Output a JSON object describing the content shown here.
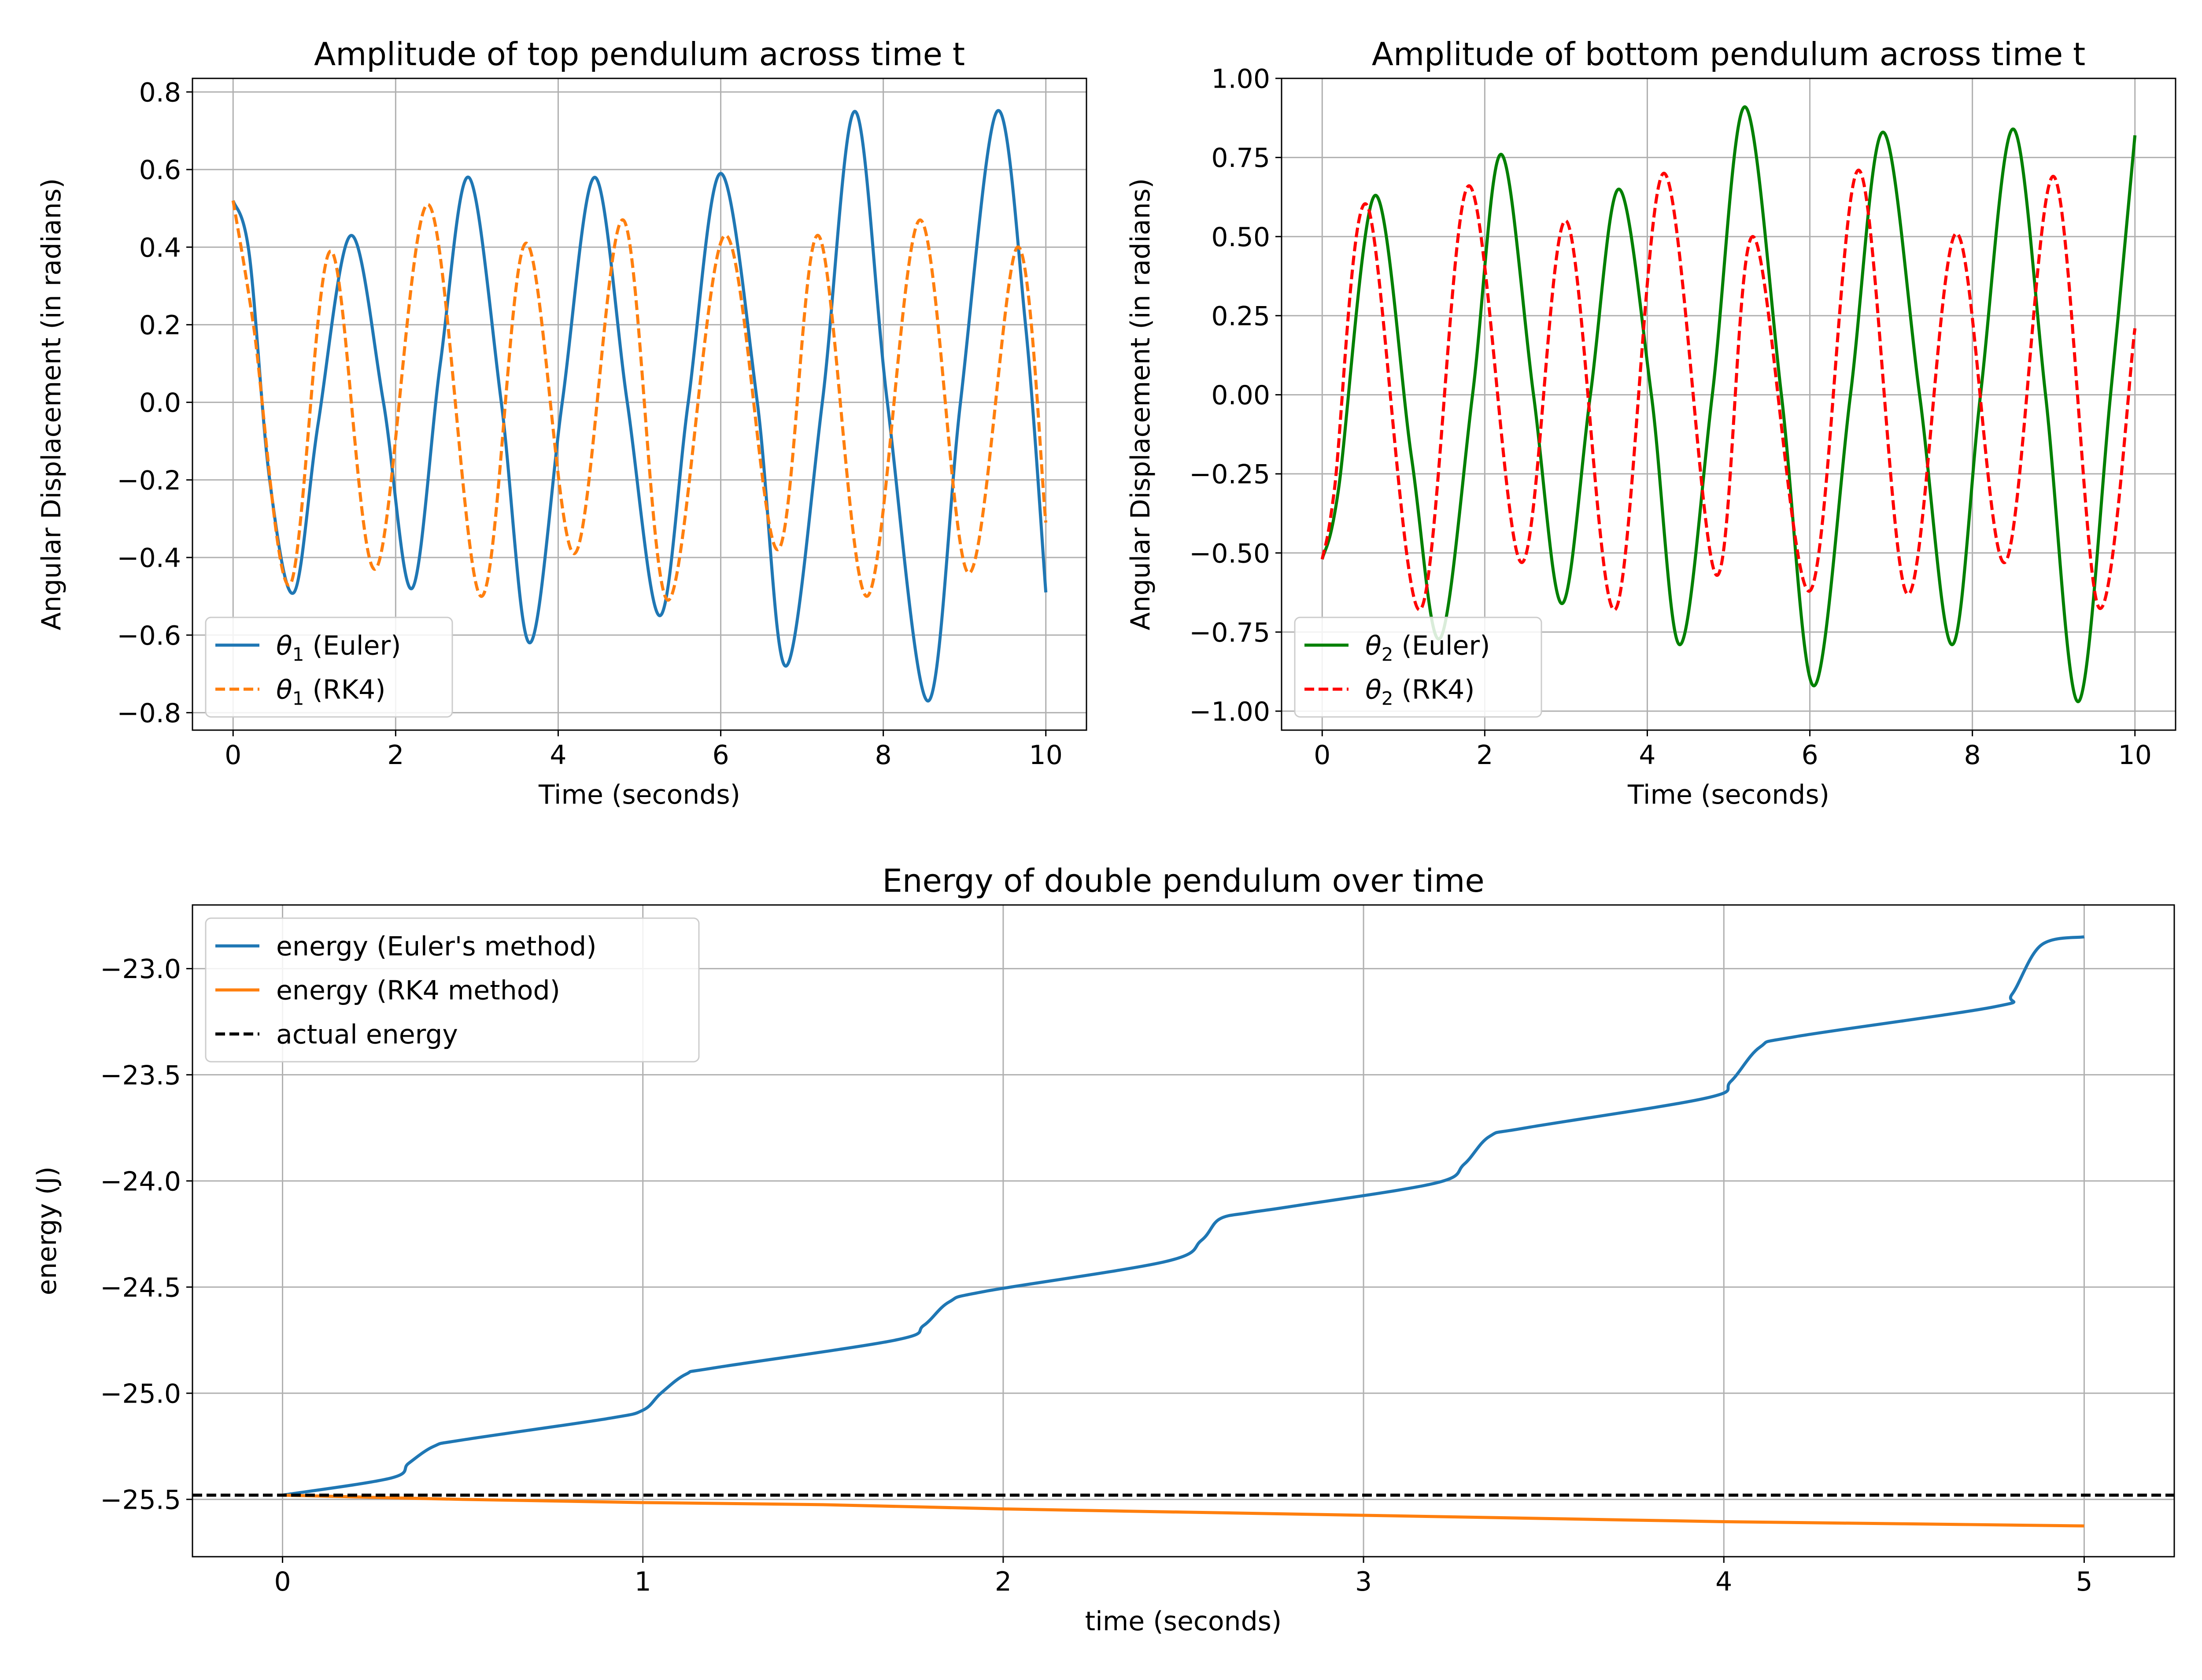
{
  "chart_data": [
    {
      "id": "top",
      "type": "line",
      "title": "Amplitude of top pendulum across time t",
      "xlabel": "Time (seconds)",
      "ylabel": "Angular Displacement (in radians)",
      "xlim": [
        -0.5,
        10.5
      ],
      "ylim": [
        -0.845,
        0.835
      ],
      "xticks": [
        0,
        2,
        4,
        6,
        8,
        10
      ],
      "xtick_labels": [
        "0",
        "2",
        "4",
        "6",
        "8",
        "10"
      ],
      "yticks": [
        -0.8,
        -0.6,
        -0.4,
        -0.2,
        0.0,
        0.2,
        0.4,
        0.6,
        0.8
      ],
      "ytick_labels": [
        "−0.8",
        "−0.6",
        "−0.4",
        "−0.2",
        "0.0",
        "0.2",
        "0.4",
        "0.6",
        "0.8"
      ],
      "grid": true,
      "legend_position": "lower-left",
      "series": [
        {
          "name_base": "θ",
          "name_sub": "1",
          "name_suffix": " (Euler)",
          "color": "#1f77b4",
          "dash": "solid",
          "x": [
            0,
            0.2,
            0.45,
            0.75,
            1.05,
            1.45,
            1.85,
            2.2,
            2.55,
            2.9,
            3.3,
            3.65,
            4.05,
            4.45,
            4.85,
            5.25,
            5.6,
            6.0,
            6.45,
            6.8,
            7.25,
            7.65,
            8.05,
            8.55,
            8.95,
            9.4,
            9.75,
            10.0
          ],
          "y": [
            0.52,
            0.38,
            -0.2,
            -0.49,
            -0.05,
            0.43,
            0.0,
            -0.48,
            0.1,
            0.58,
            0.0,
            -0.62,
            0.0,
            0.58,
            0.0,
            -0.55,
            0.0,
            0.59,
            0.0,
            -0.68,
            0.0,
            0.75,
            0.0,
            -0.77,
            0.0,
            0.75,
            0.2,
            -0.49
          ]
        },
        {
          "name_base": "θ",
          "name_sub": "1",
          "name_suffix": " (RK4)",
          "color": "#ff7f0e",
          "dash": "dashed",
          "x": [
            0,
            0.25,
            0.7,
            1.2,
            1.75,
            2.4,
            3.05,
            3.6,
            4.2,
            4.8,
            5.35,
            6.05,
            6.7,
            7.2,
            7.8,
            8.45,
            9.05,
            9.65,
            10.0
          ],
          "y": [
            0.52,
            0.2,
            -0.47,
            0.39,
            -0.43,
            0.51,
            -0.5,
            0.41,
            -0.39,
            0.47,
            -0.51,
            0.43,
            -0.38,
            0.43,
            -0.5,
            0.47,
            -0.44,
            0.4,
            -0.31
          ]
        }
      ]
    },
    {
      "id": "bottom",
      "type": "line",
      "title": "Amplitude of bottom pendulum across time t",
      "xlabel": "Time (seconds)",
      "ylabel": "Angular Displacement (in radians)",
      "xlim": [
        -0.5,
        10.5
      ],
      "ylim": [
        -1.06,
        1.0
      ],
      "xticks": [
        0,
        2,
        4,
        6,
        8,
        10
      ],
      "xtick_labels": [
        "0",
        "2",
        "4",
        "6",
        "8",
        "10"
      ],
      "yticks": [
        -1.0,
        -0.75,
        -0.5,
        -0.25,
        0.0,
        0.25,
        0.5,
        0.75,
        1.0
      ],
      "ytick_labels": [
        "−1.00",
        "−0.75",
        "−0.50",
        "−0.25",
        "0.00",
        "0.25",
        "0.50",
        "0.75",
        "1.00"
      ],
      "grid": true,
      "legend_position": "lower-left",
      "series": [
        {
          "name_base": "θ",
          "name_sub": "2",
          "name_suffix": " (Euler)",
          "color": "#008000",
          "dash": "solid",
          "x": [
            0,
            0.2,
            0.65,
            1.1,
            1.45,
            1.85,
            2.2,
            2.6,
            2.95,
            3.3,
            3.65,
            4.05,
            4.4,
            4.8,
            5.2,
            5.65,
            6.05,
            6.5,
            6.9,
            7.35,
            7.75,
            8.1,
            8.5,
            8.9,
            9.3,
            9.7,
            10.0
          ],
          "y": [
            -0.52,
            -0.3,
            0.63,
            -0.2,
            -0.77,
            0.0,
            0.76,
            0.0,
            -0.66,
            0.0,
            0.65,
            0.0,
            -0.79,
            0.0,
            0.91,
            0.0,
            -0.92,
            0.0,
            0.83,
            0.0,
            -0.79,
            0.0,
            0.84,
            0.0,
            -0.97,
            0.0,
            0.82
          ]
        },
        {
          "name_base": "θ",
          "name_sub": "2",
          "name_suffix": " (RK4)",
          "color": "#ff0000",
          "dash": "dashed",
          "x": [
            0,
            0.15,
            0.55,
            1.2,
            1.8,
            2.45,
            3.0,
            3.6,
            4.2,
            4.85,
            5.3,
            6.0,
            6.6,
            7.2,
            7.8,
            8.4,
            9.0,
            9.55,
            10.0
          ],
          "y": [
            -0.52,
            -0.3,
            0.6,
            -0.68,
            0.66,
            -0.53,
            0.55,
            -0.68,
            0.7,
            -0.57,
            0.5,
            -0.62,
            0.71,
            -0.63,
            0.51,
            -0.53,
            0.69,
            -0.67,
            0.21
          ]
        }
      ]
    },
    {
      "id": "energy",
      "type": "line",
      "title": "Energy of double pendulum over time",
      "xlabel": "time (seconds)",
      "ylabel": "energy (J)",
      "xlim": [
        -0.25,
        5.25
      ],
      "ylim": [
        -25.77,
        -22.7
      ],
      "xticks": [
        0,
        1,
        2,
        3,
        4,
        5
      ],
      "xtick_labels": [
        "0",
        "1",
        "2",
        "3",
        "4",
        "5"
      ],
      "yticks": [
        -25.5,
        -25.0,
        -24.5,
        -24.0,
        -23.5,
        -23.0
      ],
      "ytick_labels": [
        "−25.5",
        "−25.0",
        "−24.5",
        "−24.0",
        "−23.5",
        "−23.0"
      ],
      "grid": true,
      "legend_position": "upper-left",
      "series": [
        {
          "name": "energy (Euler's method)",
          "color": "#1f77b4",
          "dash": "solid",
          "x": [
            0,
            0.3,
            0.35,
            0.42,
            0.5,
            0.9,
            1.0,
            1.05,
            1.12,
            1.2,
            1.7,
            1.78,
            1.85,
            1.95,
            2.45,
            2.55,
            2.6,
            2.68,
            2.8,
            3.2,
            3.28,
            3.35,
            3.45,
            3.95,
            4.02,
            4.1,
            4.2,
            4.75,
            4.8,
            4.88,
            5.0
          ],
          "y": [
            -25.48,
            -25.4,
            -25.33,
            -25.25,
            -25.22,
            -25.12,
            -25.08,
            -25.0,
            -24.91,
            -24.88,
            -24.75,
            -24.68,
            -24.57,
            -24.52,
            -24.38,
            -24.28,
            -24.18,
            -24.15,
            -24.12,
            -24.01,
            -23.92,
            -23.79,
            -23.75,
            -23.61,
            -23.53,
            -23.37,
            -23.32,
            -23.18,
            -23.12,
            -22.89,
            -22.85
          ]
        },
        {
          "name": "energy (RK4 method)",
          "color": "#ff7f0e",
          "dash": "solid",
          "x": [
            0,
            0.5,
            1.0,
            1.5,
            2.0,
            2.5,
            3.0,
            3.5,
            4.0,
            4.5,
            5.0
          ],
          "y": [
            -25.48,
            -25.5,
            -25.515,
            -25.525,
            -25.545,
            -25.56,
            -25.575,
            -25.59,
            -25.605,
            -25.615,
            -25.625
          ]
        },
        {
          "name": "actual energy",
          "color": "#000000",
          "dash": "dashed",
          "x": [
            -0.25,
            5.25
          ],
          "y": [
            -25.48,
            -25.48
          ]
        }
      ]
    }
  ]
}
